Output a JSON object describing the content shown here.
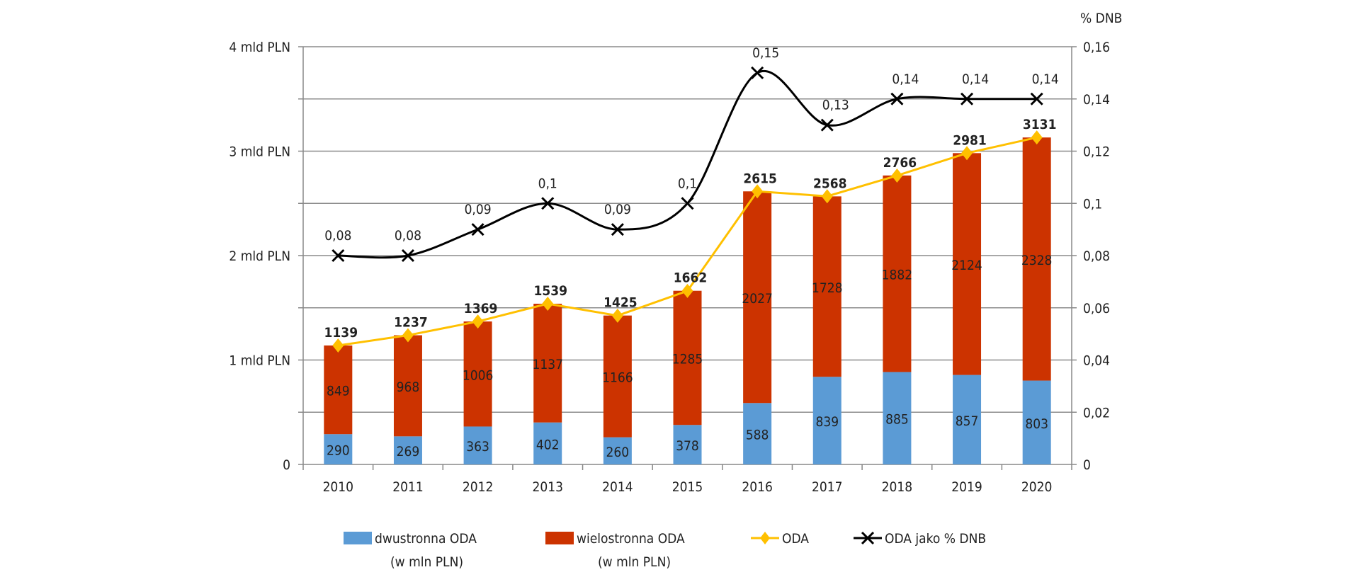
{
  "chart_data": {
    "type": "bar",
    "stacked": true,
    "categories": [
      "2010",
      "2011",
      "2012",
      "2013",
      "2014",
      "2015",
      "2016",
      "2017",
      "2018",
      "2019",
      "2020"
    ],
    "series": [
      {
        "name": "dwustronna ODA (w mln PLN)",
        "kind": "bar",
        "axis": "left",
        "color": "#5B9BD5",
        "values": [
          290,
          269,
          363,
          402,
          260,
          378,
          588,
          839,
          885,
          857,
          803
        ]
      },
      {
        "name": "wielostronna ODA (w mln PLN)",
        "kind": "bar",
        "axis": "left",
        "color": "#CC3300",
        "values": [
          849,
          968,
          1006,
          1137,
          1166,
          1285,
          2027,
          1728,
          1882,
          2124,
          2328
        ]
      },
      {
        "name": "ODA",
        "kind": "line",
        "axis": "left",
        "color": "#FFC000",
        "marker": "diamond",
        "values": [
          1139,
          1237,
          1369,
          1539,
          1425,
          1662,
          2615,
          2568,
          2766,
          2981,
          3131
        ]
      },
      {
        "name": "ODA jako % DNB",
        "kind": "line",
        "axis": "right",
        "color": "#000000",
        "marker": "x",
        "smooth": true,
        "values": [
          0.08,
          0.08,
          0.09,
          0.1,
          0.09,
          0.1,
          0.15,
          0.13,
          0.14,
          0.14,
          0.14
        ],
        "labels": [
          "0,08",
          "0,08",
          "0,09",
          "0,1",
          "0,09",
          "0,1",
          "0,15",
          "0,13",
          "0,14",
          "0,14",
          "0,14"
        ]
      }
    ],
    "left_axis": {
      "ylim": [
        0,
        4000
      ],
      "ticks": [
        0,
        1000,
        2000,
        3000,
        4000
      ],
      "tick_labels": [
        "0",
        "1 mld PLN",
        "2 mld PLN",
        "3 mld PLN",
        "4 mld PLN"
      ]
    },
    "right_axis": {
      "label": "% DNB",
      "ylim": [
        0,
        0.16
      ],
      "tick_labels": [
        "0",
        "0,02",
        "0,04",
        "0,06",
        "0,08",
        "0,1",
        "0,12",
        "0,14",
        "0,16"
      ]
    },
    "grid": true,
    "legend_position": "bottom",
    "legend": [
      {
        "line1": "dwustronna ODA",
        "line2": "(w mln PLN)"
      },
      {
        "line1": "wielostronna ODA",
        "line2": "(w mln PLN)"
      },
      {
        "line1": "ODA",
        "line2": ""
      },
      {
        "line1": "ODA jako % DNB",
        "line2": ""
      }
    ]
  }
}
